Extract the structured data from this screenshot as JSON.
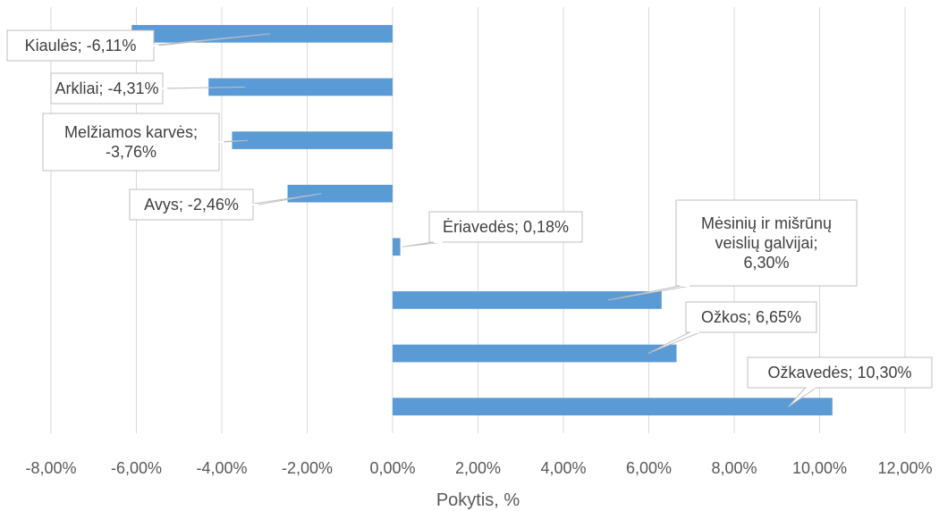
{
  "chart_data": {
    "type": "bar",
    "orientation": "horizontal",
    "categories": [
      "Kiaulės",
      "Arkliai",
      "Melžiamos karvės",
      "Avys",
      "Ėriavedės",
      "Mėsinių ir mišrūnų veislių galvijai",
      "Ožkos",
      "Ožkavedės"
    ],
    "values": [
      -6.11,
      -4.31,
      -3.76,
      -2.46,
      0.18,
      6.3,
      6.65,
      10.3
    ],
    "data_labels": [
      [
        "Kiaulės; -6,11%"
      ],
      [
        "Arkliai; -4,31%"
      ],
      [
        "Melžiamos karvės;",
        "-3,76%"
      ],
      [
        "Avys; -2,46%"
      ],
      [
        "Ėriavedės; 0,18%"
      ],
      [
        "Mėsinių ir mišrūnų",
        "veislių galvijai;",
        "6,30%"
      ],
      [
        "Ožkos; 6,65%"
      ],
      [
        "Ožkavedės; 10,30%"
      ]
    ],
    "xlabel": "Pokytis, %",
    "xlim": [
      -8,
      12
    ],
    "xticks": [
      -8,
      -6,
      -4,
      -2,
      0,
      2,
      4,
      6,
      8,
      10,
      12
    ],
    "xtick_labels": [
      "-8,00%",
      "-6,00%",
      "-4,00%",
      "-2,00%",
      "0,00%",
      "2,00%",
      "4,00%",
      "6,00%",
      "8,00%",
      "10,00%",
      "12,00%"
    ],
    "grid": "vertical",
    "bar_color": "#5B9BD5",
    "gridline_color": "#D9D9D9",
    "callout_border_color": "#BFBFBF"
  }
}
